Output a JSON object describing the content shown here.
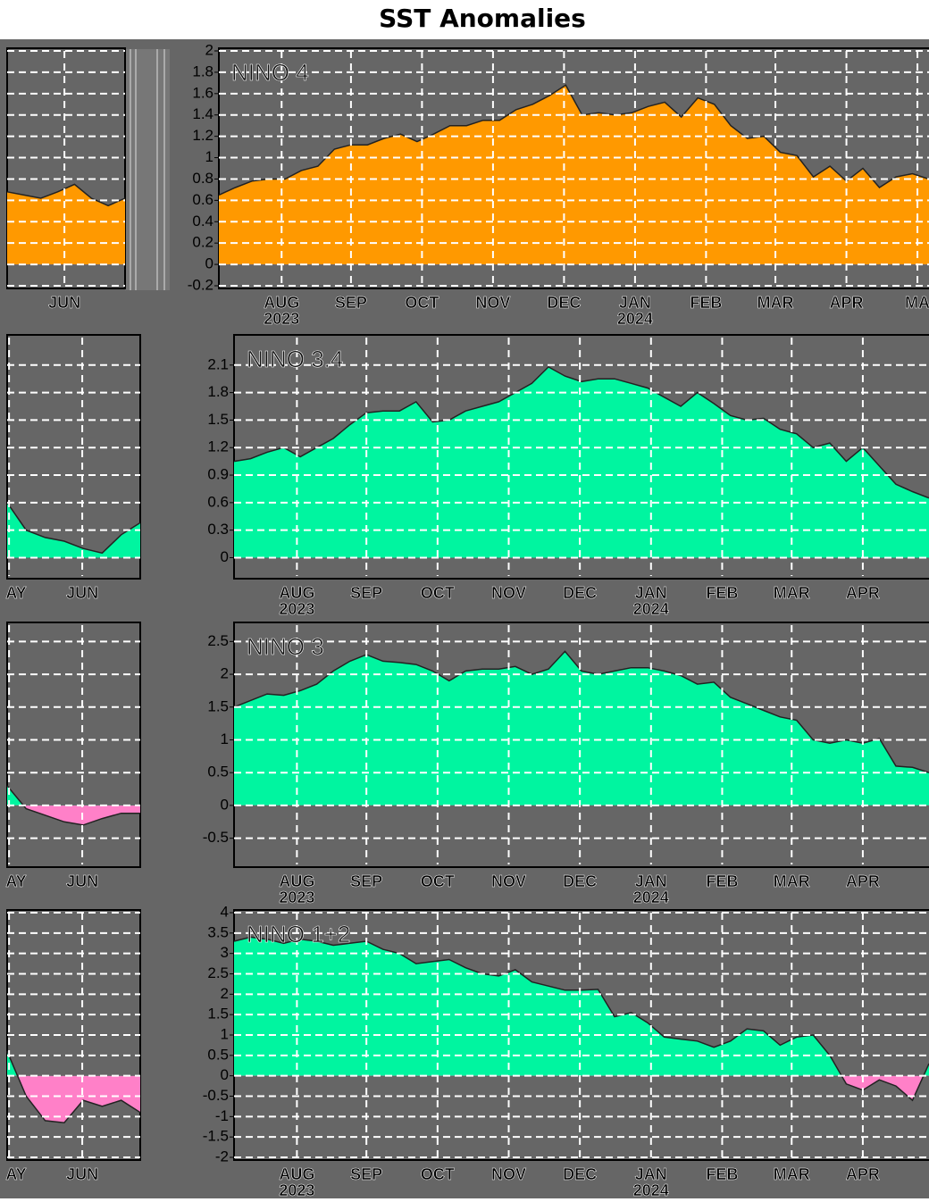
{
  "title": "SST Anomalies",
  "chart_data": [
    {
      "type": "area",
      "title": "NINO 4",
      "color": "#ff9900",
      "negative_color": "#ff80c8",
      "grid": true,
      "x": [
        0,
        1,
        2,
        3,
        4,
        5,
        6,
        7,
        8,
        9,
        10,
        11,
        12,
        13,
        14,
        15,
        16,
        17,
        18,
        19,
        20,
        21,
        22,
        23,
        24,
        25,
        26,
        27,
        28,
        29,
        30,
        31,
        32,
        33,
        34,
        35,
        36,
        37,
        38,
        39,
        40,
        41,
        42,
        43
      ],
      "values": [
        0.65,
        0.72,
        0.78,
        0.8,
        0.8,
        0.88,
        0.92,
        1.08,
        1.12,
        1.12,
        1.18,
        1.22,
        1.15,
        1.22,
        1.3,
        1.3,
        1.35,
        1.35,
        1.45,
        1.5,
        1.58,
        1.68,
        1.4,
        1.42,
        1.4,
        1.42,
        1.48,
        1.52,
        1.38,
        1.56,
        1.5,
        1.3,
        1.18,
        1.2,
        1.05,
        1.02,
        0.82,
        0.92,
        0.78,
        0.9,
        0.72,
        0.82,
        0.85,
        0.8
      ],
      "xlim": [
        0,
        43
      ],
      "xticks": [
        {
          "value": 3.8,
          "label": "AUG"
        },
        {
          "value": 8.0,
          "label": "SEP"
        },
        {
          "value": 12.3,
          "label": "OCT"
        },
        {
          "value": 16.6,
          "label": "NOV"
        },
        {
          "value": 20.9,
          "label": "DEC"
        },
        {
          "value": 25.2,
          "label": "JAN"
        },
        {
          "value": 29.5,
          "label": "FEB"
        },
        {
          "value": 33.7,
          "label": "MAR"
        },
        {
          "value": 38.0,
          "label": "APR"
        },
        {
          "value": 42.3,
          "label": "MA"
        }
      ],
      "year_labels": [
        {
          "value": 3.8,
          "label": "2023"
        },
        {
          "value": 25.2,
          "label": "2024"
        }
      ],
      "ylim": [
        -0.2,
        2
      ],
      "yticks": [
        -0.2,
        0,
        0.2,
        0.4,
        0.6,
        0.8,
        1,
        1.2,
        1.4,
        1.6,
        1.8,
        2
      ],
      "inset": {
        "x": [
          0,
          1,
          2,
          3,
          4,
          5,
          6,
          7
        ],
        "values": [
          0.68,
          0.65,
          0.62,
          0.68,
          0.75,
          0.62,
          0.55,
          0.62
        ],
        "xlim": [
          0,
          7
        ],
        "xticks": [
          {
            "value": 3.4,
            "label": "JUN"
          }
        ]
      }
    },
    {
      "type": "area",
      "title": "NINO 3.4",
      "color": "#00f5a0",
      "negative_color": "#ff80c8",
      "grid": true,
      "x": [
        0,
        1,
        2,
        3,
        4,
        5,
        6,
        7,
        8,
        9,
        10,
        11,
        12,
        13,
        14,
        15,
        16,
        17,
        18,
        19,
        20,
        21,
        22,
        23,
        24,
        25,
        26,
        27,
        28,
        29,
        30,
        31,
        32,
        33,
        34,
        35,
        36,
        37,
        38,
        39,
        40,
        41,
        42
      ],
      "values": [
        1.05,
        1.08,
        1.15,
        1.2,
        1.1,
        1.2,
        1.3,
        1.45,
        1.58,
        1.6,
        1.6,
        1.7,
        1.48,
        1.5,
        1.6,
        1.65,
        1.7,
        1.8,
        1.9,
        2.08,
        1.98,
        1.92,
        1.95,
        1.95,
        1.9,
        1.85,
        1.75,
        1.65,
        1.8,
        1.68,
        1.55,
        1.5,
        1.52,
        1.4,
        1.35,
        1.2,
        1.25,
        1.05,
        1.2,
        1.0,
        0.8,
        0.72,
        0.65
      ],
      "xlim": [
        0,
        42
      ],
      "xticks": [
        {
          "value": 3.8,
          "label": "AUG"
        },
        {
          "value": 8.0,
          "label": "SEP"
        },
        {
          "value": 12.3,
          "label": "OCT"
        },
        {
          "value": 16.6,
          "label": "NOV"
        },
        {
          "value": 20.9,
          "label": "DEC"
        },
        {
          "value": 25.2,
          "label": "JAN"
        },
        {
          "value": 29.5,
          "label": "FEB"
        },
        {
          "value": 33.7,
          "label": "MAR"
        },
        {
          "value": 38.0,
          "label": "APR"
        }
      ],
      "year_labels": [
        {
          "value": 3.8,
          "label": "2023"
        },
        {
          "value": 25.2,
          "label": "2024"
        }
      ],
      "ylim": [
        -0.2,
        2.4
      ],
      "yticks": [
        0,
        0.3,
        0.6,
        0.9,
        1.2,
        1.5,
        1.8,
        2.1
      ],
      "inset": {
        "x": [
          0,
          1,
          2,
          3,
          4,
          5,
          6,
          7
        ],
        "values": [
          0.6,
          0.3,
          0.22,
          0.18,
          0.1,
          0.05,
          0.25,
          0.38
        ],
        "xlim": [
          0,
          7
        ],
        "xticks": [
          {
            "value": 0.1,
            "label": "AY"
          },
          {
            "value": 3.95,
            "label": "JUN"
          }
        ]
      }
    },
    {
      "type": "area",
      "title": "NINO 3",
      "color": "#00f5a0",
      "negative_color": "#ff80c8",
      "grid": true,
      "x": [
        0,
        1,
        2,
        3,
        4,
        5,
        6,
        7,
        8,
        9,
        10,
        11,
        12,
        13,
        14,
        15,
        16,
        17,
        18,
        19,
        20,
        21,
        22,
        23,
        24,
        25,
        26,
        27,
        28,
        29,
        30,
        31,
        32,
        33,
        34,
        35,
        36,
        37,
        38,
        39,
        40,
        41,
        42
      ],
      "values": [
        1.5,
        1.6,
        1.7,
        1.68,
        1.75,
        1.85,
        2.05,
        2.2,
        2.3,
        2.2,
        2.18,
        2.15,
        2.05,
        1.9,
        2.05,
        2.08,
        2.08,
        2.12,
        2.0,
        2.08,
        2.35,
        2.05,
        2.0,
        2.05,
        2.1,
        2.1,
        2.05,
        1.98,
        1.85,
        1.88,
        1.65,
        1.55,
        1.45,
        1.35,
        1.3,
        1.0,
        0.95,
        1.0,
        0.95,
        1.02,
        0.6,
        0.58,
        0.5
      ],
      "xlim": [
        0,
        42
      ],
      "xticks": [
        {
          "value": 3.8,
          "label": "AUG"
        },
        {
          "value": 8.0,
          "label": "SEP"
        },
        {
          "value": 12.3,
          "label": "OCT"
        },
        {
          "value": 16.6,
          "label": "NOV"
        },
        {
          "value": 20.9,
          "label": "DEC"
        },
        {
          "value": 25.2,
          "label": "JAN"
        },
        {
          "value": 29.5,
          "label": "FEB"
        },
        {
          "value": 33.7,
          "label": "MAR"
        },
        {
          "value": 38.0,
          "label": "APR"
        }
      ],
      "year_labels": [
        {
          "value": 3.8,
          "label": "2023"
        },
        {
          "value": 25.2,
          "label": "2024"
        }
      ],
      "ylim": [
        -0.9,
        2.75
      ],
      "yticks": [
        -0.5,
        0,
        0.5,
        1,
        1.5,
        2,
        2.5
      ],
      "inset": {
        "x": [
          0,
          1,
          2,
          3,
          4,
          5,
          6,
          7
        ],
        "values": [
          0.3,
          -0.05,
          -0.15,
          -0.25,
          -0.3,
          -0.2,
          -0.12,
          -0.12
        ],
        "xlim": [
          0,
          7
        ],
        "xticks": [
          {
            "value": 0.1,
            "label": "AY"
          },
          {
            "value": 3.95,
            "label": "JUN"
          }
        ]
      }
    },
    {
      "type": "area",
      "title": "NINO 1+2",
      "color": "#00f5a0",
      "negative_color": "#ff80c8",
      "grid": true,
      "x": [
        0,
        1,
        2,
        3,
        4,
        5,
        6,
        7,
        8,
        9,
        10,
        11,
        12,
        13,
        14,
        15,
        16,
        17,
        18,
        19,
        20,
        21,
        22,
        23,
        24,
        25,
        26,
        27,
        28,
        29,
        30,
        31,
        32,
        33,
        34,
        35,
        36,
        37,
        38,
        39,
        40,
        41,
        42
      ],
      "values": [
        3.3,
        3.4,
        3.35,
        3.25,
        3.35,
        3.3,
        3.2,
        3.25,
        3.3,
        3.1,
        3.0,
        2.75,
        2.8,
        2.85,
        2.65,
        2.5,
        2.45,
        2.6,
        2.3,
        2.2,
        2.1,
        2.1,
        2.12,
        1.45,
        1.55,
        1.3,
        0.95,
        0.9,
        0.85,
        0.7,
        0.85,
        1.15,
        1.1,
        0.75,
        0.95,
        1.0,
        0.5,
        -0.2,
        -0.35,
        -0.1,
        -0.25,
        -0.6,
        0.3
      ],
      "xlim": [
        0,
        42
      ],
      "xticks": [
        {
          "value": 3.8,
          "label": "AUG"
        },
        {
          "value": 8.0,
          "label": "SEP"
        },
        {
          "value": 12.3,
          "label": "OCT"
        },
        {
          "value": 16.6,
          "label": "NOV"
        },
        {
          "value": 20.9,
          "label": "DEC"
        },
        {
          "value": 25.2,
          "label": "JAN"
        },
        {
          "value": 29.5,
          "label": "FEB"
        },
        {
          "value": 33.7,
          "label": "MAR"
        },
        {
          "value": 38.0,
          "label": "APR"
        }
      ],
      "year_labels": [
        {
          "value": 3.8,
          "label": "2023"
        },
        {
          "value": 25.2,
          "label": "2024"
        }
      ],
      "ylim": [
        -2,
        4
      ],
      "yticks": [
        -2,
        -1.5,
        -1,
        -0.5,
        0,
        0.5,
        1,
        1.5,
        2,
        2.5,
        3,
        3.5,
        4
      ],
      "inset": {
        "x": [
          0,
          1,
          2,
          3,
          4,
          5,
          6,
          7
        ],
        "values": [
          0.6,
          -0.5,
          -1.1,
          -1.15,
          -0.6,
          -0.75,
          -0.6,
          -0.9
        ],
        "xlim": [
          0,
          7
        ],
        "xticks": [
          {
            "value": 0.1,
            "label": "AY"
          },
          {
            "value": 3.95,
            "label": "JUN"
          }
        ]
      }
    }
  ]
}
